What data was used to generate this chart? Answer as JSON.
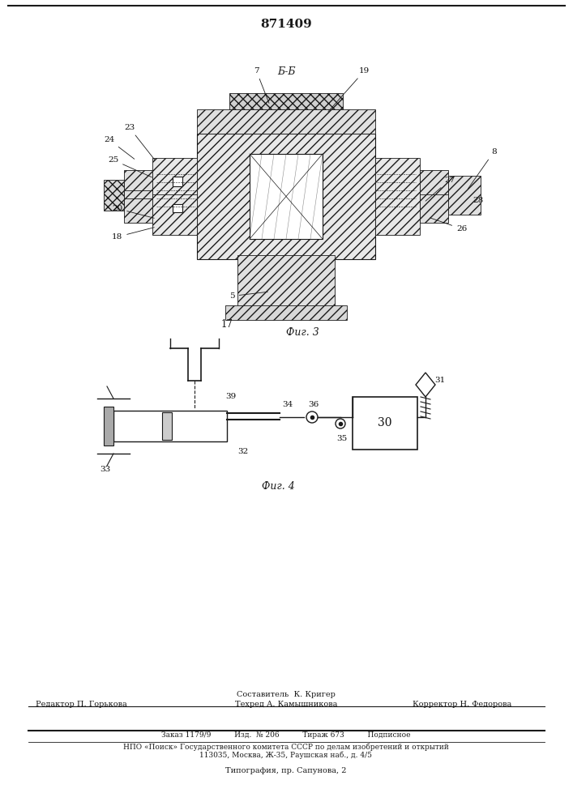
{
  "title": "871409",
  "fig3_label": "Фиг. 3",
  "fig4_label": "Фиг. 4",
  "section_label": "Б-Б",
  "footer_line1": "Составитель  К. Кригер",
  "footer_line2_left": "Редактор П. Горькова",
  "footer_line2_mid": "Техред А. Камышникова",
  "footer_line2_right": "Корректор Н. Федорова",
  "footer_line3": "Заказ 1179/9          Изд.  № 206          Тираж 673          Подписное",
  "footer_line4": "НПО «Поиск» Государственного комитета СССР по делам изобретений и открытий",
  "footer_line5": "113035, Москва, Ж-35, Раушская наб., д. 4/5",
  "footer_line6": "Типография, пр. Сапунова, 2",
  "bg_color": "#f5f5f0",
  "line_color": "#1a1a1a",
  "hatch_color": "#333333"
}
